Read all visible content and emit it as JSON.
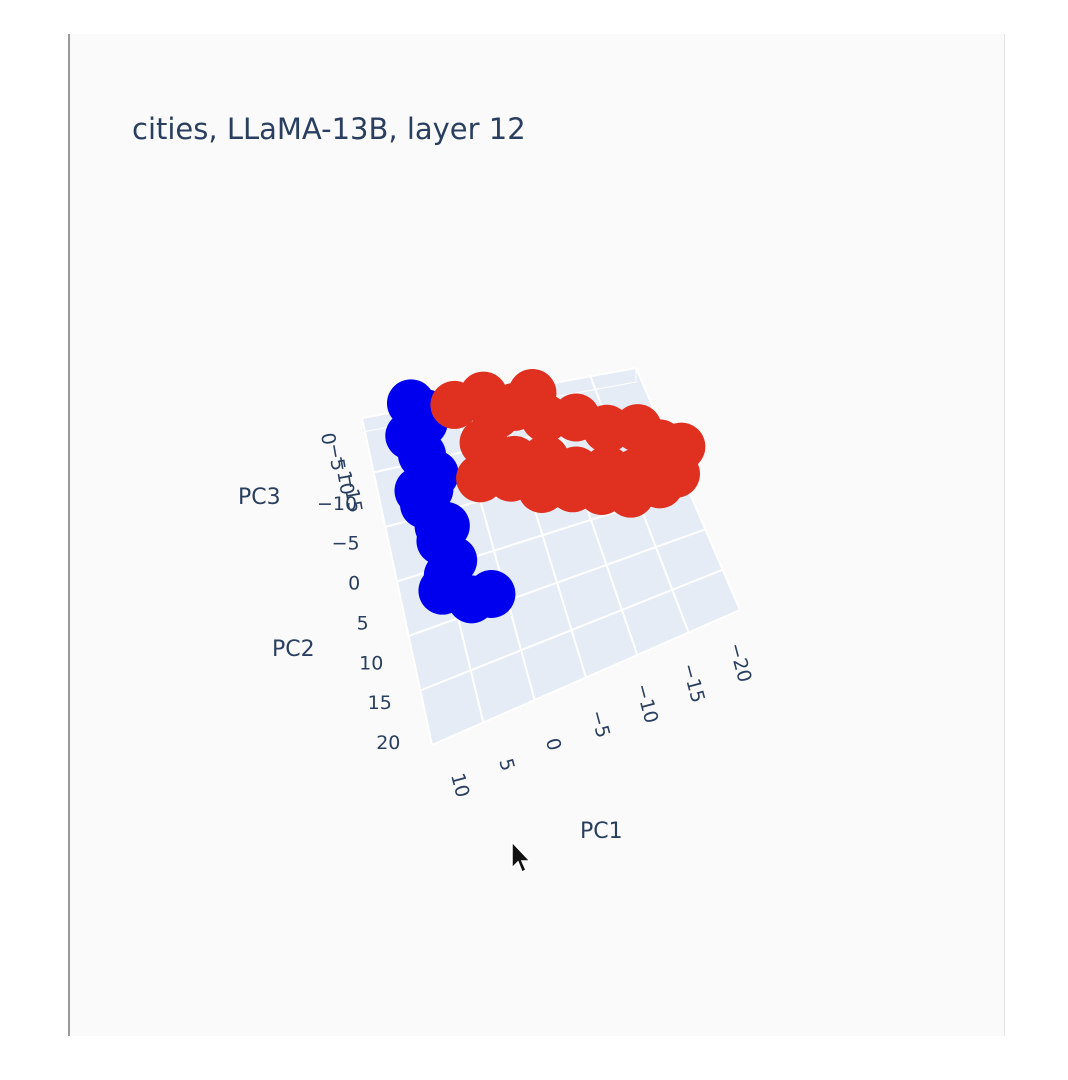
{
  "chart_data": {
    "type": "scatter3d",
    "title": "cities, LLaMA-13B, layer 12",
    "xlabel": "PC1",
    "ylabel": "PC2",
    "zlabel": "PC3",
    "x_ticks": [
      "10",
      "5",
      "0",
      "−5",
      "−10",
      "−15",
      "−20"
    ],
    "y_ticks": [
      "20",
      "15",
      "10",
      "5",
      "0",
      "−5",
      "−10"
    ],
    "z_ticks": [
      "0",
      "−5",
      "−10",
      "−15"
    ],
    "grid": true,
    "series": [
      {
        "color": "#0000ee",
        "points": [
          [
            7,
            -14,
            2
          ],
          [
            6,
            -12,
            1
          ],
          [
            8,
            -10,
            3
          ],
          [
            7,
            -8,
            2
          ],
          [
            6,
            -6,
            1
          ],
          [
            7,
            -4,
            2
          ],
          [
            8,
            -2,
            3
          ],
          [
            6,
            0,
            1
          ],
          [
            7,
            2,
            2
          ],
          [
            6,
            4,
            1
          ],
          [
            7,
            6,
            2
          ],
          [
            8,
            8,
            3
          ],
          [
            5,
            9,
            1
          ],
          [
            3,
            10,
            2
          ],
          [
            6,
            -11,
            4
          ],
          [
            8,
            -5,
            1
          ],
          [
            7,
            1,
            3
          ]
        ]
      },
      {
        "color": "#e03020",
        "points": [
          [
            2,
            -15,
            -3
          ],
          [
            -1,
            -14,
            -2
          ],
          [
            -4,
            -12,
            -3
          ],
          [
            -7,
            -10,
            -4
          ],
          [
            -10,
            -8,
            -3
          ],
          [
            -13,
            -6,
            -4
          ],
          [
            -16,
            -4,
            -3
          ],
          [
            -18,
            -2,
            -4
          ],
          [
            -20,
            0,
            -3
          ],
          [
            -19,
            2,
            -4
          ],
          [
            -17,
            3,
            -3
          ],
          [
            -14,
            2,
            -4
          ],
          [
            -11,
            1,
            -3
          ],
          [
            -8,
            0,
            -2
          ],
          [
            -5,
            -2,
            -3
          ],
          [
            -2,
            -4,
            -2
          ],
          [
            1,
            -6,
            -3
          ],
          [
            0,
            -9,
            -2
          ],
          [
            -3,
            -7,
            -4
          ],
          [
            -6,
            -5,
            -3
          ],
          [
            -9,
            -3,
            -4
          ],
          [
            -12,
            -1,
            -3
          ],
          [
            -15,
            0,
            -4
          ],
          [
            -6,
            -12,
            -2
          ],
          [
            -2,
            -12,
            -3
          ]
        ]
      }
    ]
  }
}
